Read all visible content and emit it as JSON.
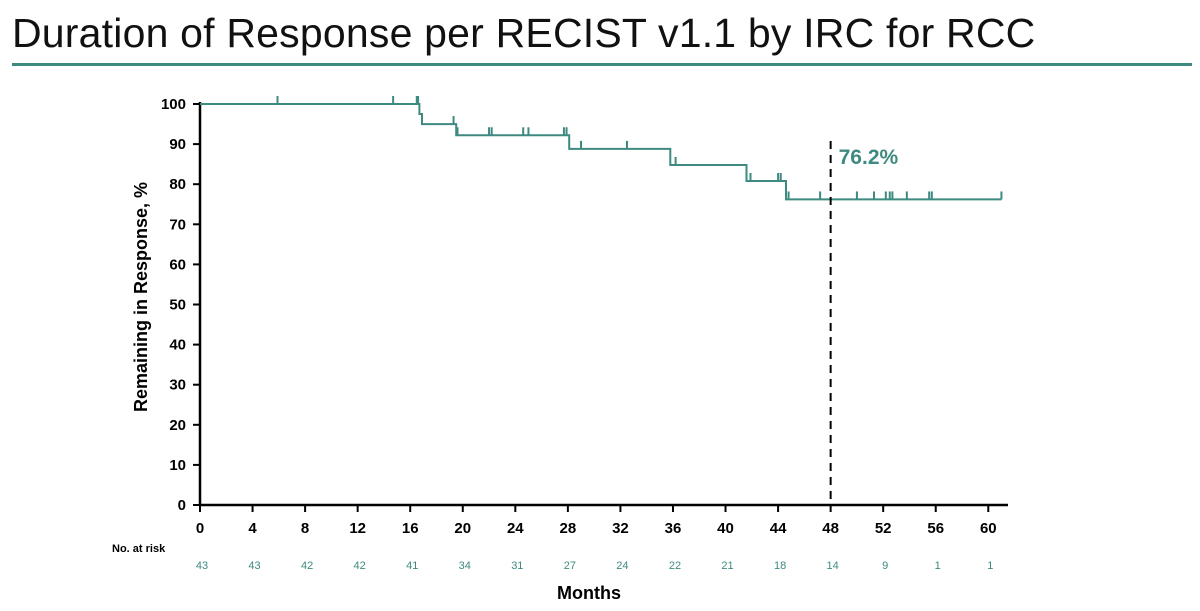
{
  "title": "Duration of Response per RECIST v1.1 by IRC for RCC",
  "colors": {
    "accent": "#3e8a80",
    "rule": "#3e8a80",
    "axis": "#000000"
  },
  "chart_data": {
    "type": "line",
    "title": "",
    "xlabel": "Months",
    "ylabel": "Remaining in Response, %",
    "xlim": [
      0,
      61.5
    ],
    "ylim": [
      0,
      100
    ],
    "xticks": [
      0,
      4,
      8,
      12,
      16,
      20,
      24,
      28,
      32,
      36,
      40,
      44,
      48,
      52,
      56,
      60
    ],
    "yticks": [
      0,
      10,
      20,
      30,
      40,
      50,
      60,
      70,
      80,
      90,
      100
    ],
    "grid": false,
    "legend": "none",
    "series": [
      {
        "name": "",
        "color": "#3e8a80",
        "step": true,
        "points": [
          [
            0,
            100
          ],
          [
            16.7,
            100
          ],
          [
            16.7,
            97.5
          ],
          [
            16.9,
            97.5
          ],
          [
            16.9,
            95
          ],
          [
            19.5,
            95
          ],
          [
            19.5,
            92.2
          ],
          [
            28.1,
            92.2
          ],
          [
            28.1,
            88.8
          ],
          [
            35.8,
            88.8
          ],
          [
            35.8,
            84.8
          ],
          [
            41.6,
            84.8
          ],
          [
            41.6,
            80.8
          ],
          [
            44.6,
            80.8
          ],
          [
            44.6,
            76.2
          ],
          [
            61.0,
            76.2
          ]
        ],
        "censored": [
          [
            5.9,
            100
          ],
          [
            14.7,
            100
          ],
          [
            16.5,
            100
          ],
          [
            16.6,
            100
          ],
          [
            19.3,
            95
          ],
          [
            19.6,
            92.2
          ],
          [
            22.0,
            92.2
          ],
          [
            22.2,
            92.2
          ],
          [
            24.6,
            92.2
          ],
          [
            25.0,
            92.2
          ],
          [
            27.7,
            92.2
          ],
          [
            27.9,
            92.2
          ],
          [
            29.0,
            88.8
          ],
          [
            32.5,
            88.8
          ],
          [
            36.2,
            84.8
          ],
          [
            41.9,
            80.8
          ],
          [
            44.0,
            80.8
          ],
          [
            44.2,
            80.8
          ],
          [
            44.8,
            76.2
          ],
          [
            47.2,
            76.2
          ],
          [
            50.0,
            76.2
          ],
          [
            51.3,
            76.2
          ],
          [
            52.2,
            76.2
          ],
          [
            52.5,
            76.2
          ],
          [
            52.7,
            76.2
          ],
          [
            53.8,
            76.2
          ],
          [
            55.5,
            76.2
          ],
          [
            55.7,
            76.2
          ],
          [
            61.0,
            76.2
          ]
        ]
      }
    ],
    "reference_line": {
      "x": 48,
      "style": "dashed"
    },
    "annotations": [
      {
        "text": "76.2%",
        "x": 48,
        "y": 76.2
      }
    ],
    "at_risk": {
      "label": "No. at risk",
      "times": [
        0,
        4,
        8,
        12,
        16,
        20,
        24,
        28,
        32,
        36,
        40,
        44,
        48,
        52,
        56,
        60
      ],
      "values": [
        43,
        43,
        42,
        42,
        41,
        34,
        31,
        27,
        24,
        22,
        21,
        18,
        14,
        9,
        1,
        1
      ]
    }
  }
}
